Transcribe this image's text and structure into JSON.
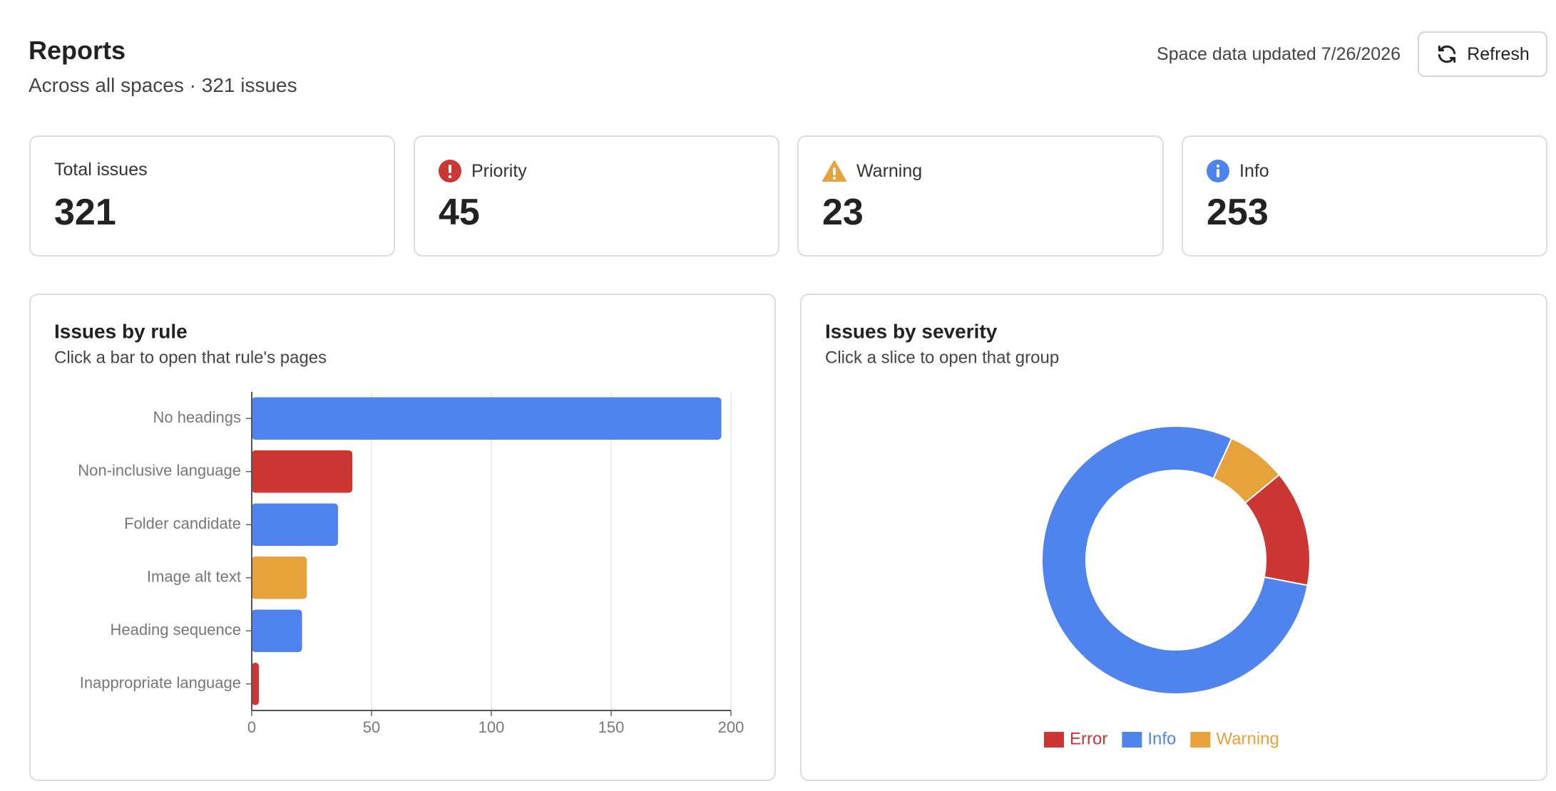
{
  "header": {
    "title": "Reports",
    "subtitle": "Across all spaces · 321 issues",
    "updated": "Space data updated 7/26/2026",
    "refresh": "Refresh"
  },
  "stats": [
    {
      "label": "Total issues",
      "value": 321
    },
    {
      "label": "Priority",
      "value": 45
    },
    {
      "label": "Warning",
      "value": 23
    },
    {
      "label": "Info",
      "value": 253
    }
  ],
  "chart_data": [
    {
      "type": "bar",
      "orientation": "horizontal",
      "title": "Issues by rule",
      "subtitle": "Click a bar to open that rule's pages",
      "categories": [
        "No headings",
        "Non-inclusive language",
        "Folder candidate",
        "Image alt text",
        "Heading sequence",
        "Inappropriate language"
      ],
      "values": [
        196,
        42,
        36,
        23,
        21,
        3
      ],
      "colors": [
        "#4f83ee",
        "#cc3733",
        "#4f83ee",
        "#e8a23b",
        "#4f83ee",
        "#cc3733"
      ],
      "xlim": [
        0,
        200
      ],
      "xticks": [
        0,
        50,
        100,
        150,
        200
      ],
      "grid": true
    },
    {
      "type": "pie",
      "donut": true,
      "title": "Issues by severity",
      "subtitle": "Click a slice to open that group",
      "categories": [
        "Error",
        "Info",
        "Warning"
      ],
      "values": [
        45,
        253,
        23
      ],
      "colors": [
        "#cc3733",
        "#4f83ee",
        "#e8a23b"
      ],
      "legend": "bottom"
    }
  ]
}
